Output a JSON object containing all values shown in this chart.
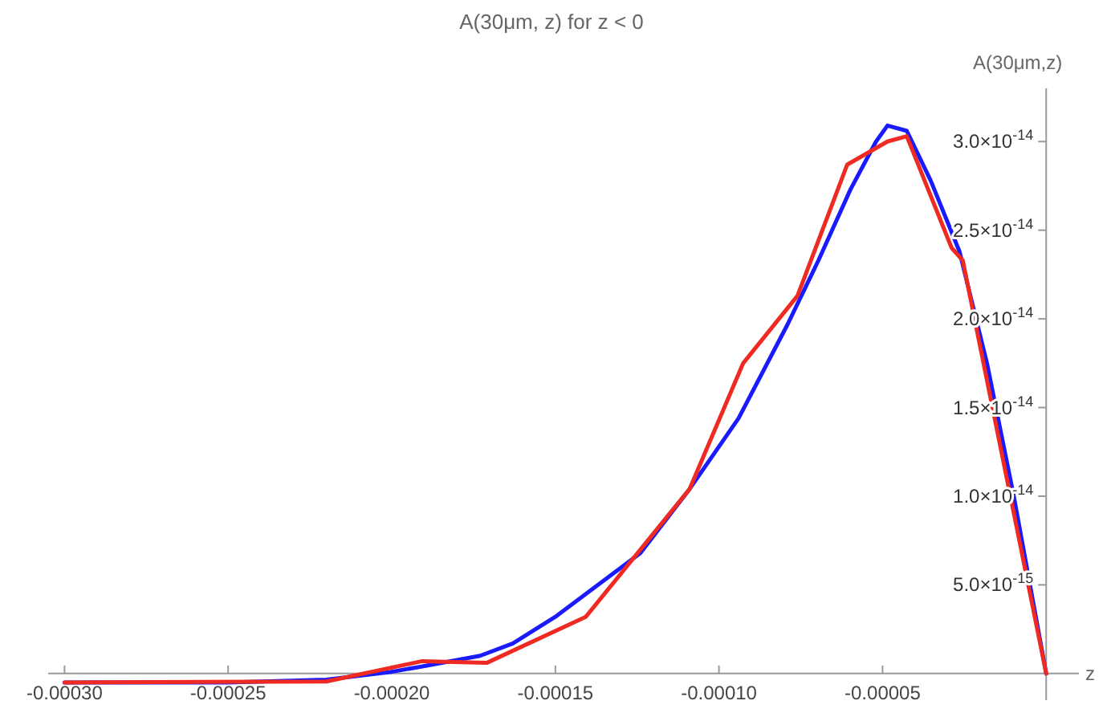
{
  "chart_data": {
    "type": "line",
    "title": "A(30μm, z) for z < 0",
    "xlabel": "z",
    "ylabel": "A(30μm,z)",
    "xlim": [
      -0.000305,
      1e-05
    ],
    "ylim": [
      -1.5e-15,
      3.3e-14
    ],
    "xticks": [
      {
        "value": -0.0003,
        "label": "-0.00030"
      },
      {
        "value": -0.00025,
        "label": "-0.00025"
      },
      {
        "value": -0.0002,
        "label": "-0.00020"
      },
      {
        "value": -0.00015,
        "label": "-0.00015"
      },
      {
        "value": -0.0001,
        "label": "-0.00010"
      },
      {
        "value": -5e-05,
        "label": "-0.00005"
      }
    ],
    "yticks": [
      {
        "value": 5e-15,
        "label": "5.0×10$^{-15}$"
      },
      {
        "value": 1e-14,
        "label": "1.0×10$^{-14}$"
      },
      {
        "value": 1.5e-14,
        "label": "1.5×10$^{-14}$"
      },
      {
        "value": 2e-14,
        "label": "2.0×10$^{-14}$"
      },
      {
        "value": 2.5e-14,
        "label": "2.5×10$^{-14}$"
      },
      {
        "value": 3e-14,
        "label": "3.0×10$^{-14}$"
      }
    ],
    "grid": false,
    "marker": "none",
    "line_style": "solid",
    "series": [
      {
        "color": "#1a1aff",
        "x": [
          -0.0003,
          -0.00025,
          -0.00022,
          -0.0002,
          -0.000192,
          -0.000173,
          -0.000163,
          -0.00015,
          -0.000124,
          -0.000109,
          -9.4e-05,
          -7.9e-05,
          -6.96e-05,
          -5.98e-05,
          -5.2e-05,
          -4.85e-05,
          -4.26e-05,
          -3.53e-05,
          -2.65e-05,
          -1.81e-05,
          -9.8e-06,
          0
        ],
        "values": [
          -5e-16,
          -5e-16,
          -3.5e-16,
          1e-16,
          3.6e-16,
          1e-15,
          1.7e-15,
          3.2e-15,
          6.8e-15,
          1.04e-14,
          1.44e-14,
          1.97e-14,
          2.33e-14,
          2.73e-14,
          3e-14,
          3.09e-14,
          3.06e-14,
          2.78e-14,
          2.38e-14,
          1.75e-14,
          9.9e-15,
          0
        ]
      },
      {
        "color": "#ee2a22",
        "x": [
          -0.0003,
          -0.00022,
          -0.0001907,
          -0.000171,
          -0.0001407,
          -0.000109,
          -9.26e-05,
          -7.6e-05,
          -6.08e-05,
          -4.85e-05,
          -4.26e-05,
          -2.89e-05,
          -2.55e-05,
          0
        ],
        "values": [
          -5e-16,
          -4.5e-16,
          7e-16,
          6e-16,
          3.2e-15,
          1.04e-14,
          1.75e-14,
          2.13e-14,
          2.87e-14,
          3e-14,
          3.03e-14,
          2.4e-14,
          2.33e-14,
          0
        ]
      }
    ]
  }
}
